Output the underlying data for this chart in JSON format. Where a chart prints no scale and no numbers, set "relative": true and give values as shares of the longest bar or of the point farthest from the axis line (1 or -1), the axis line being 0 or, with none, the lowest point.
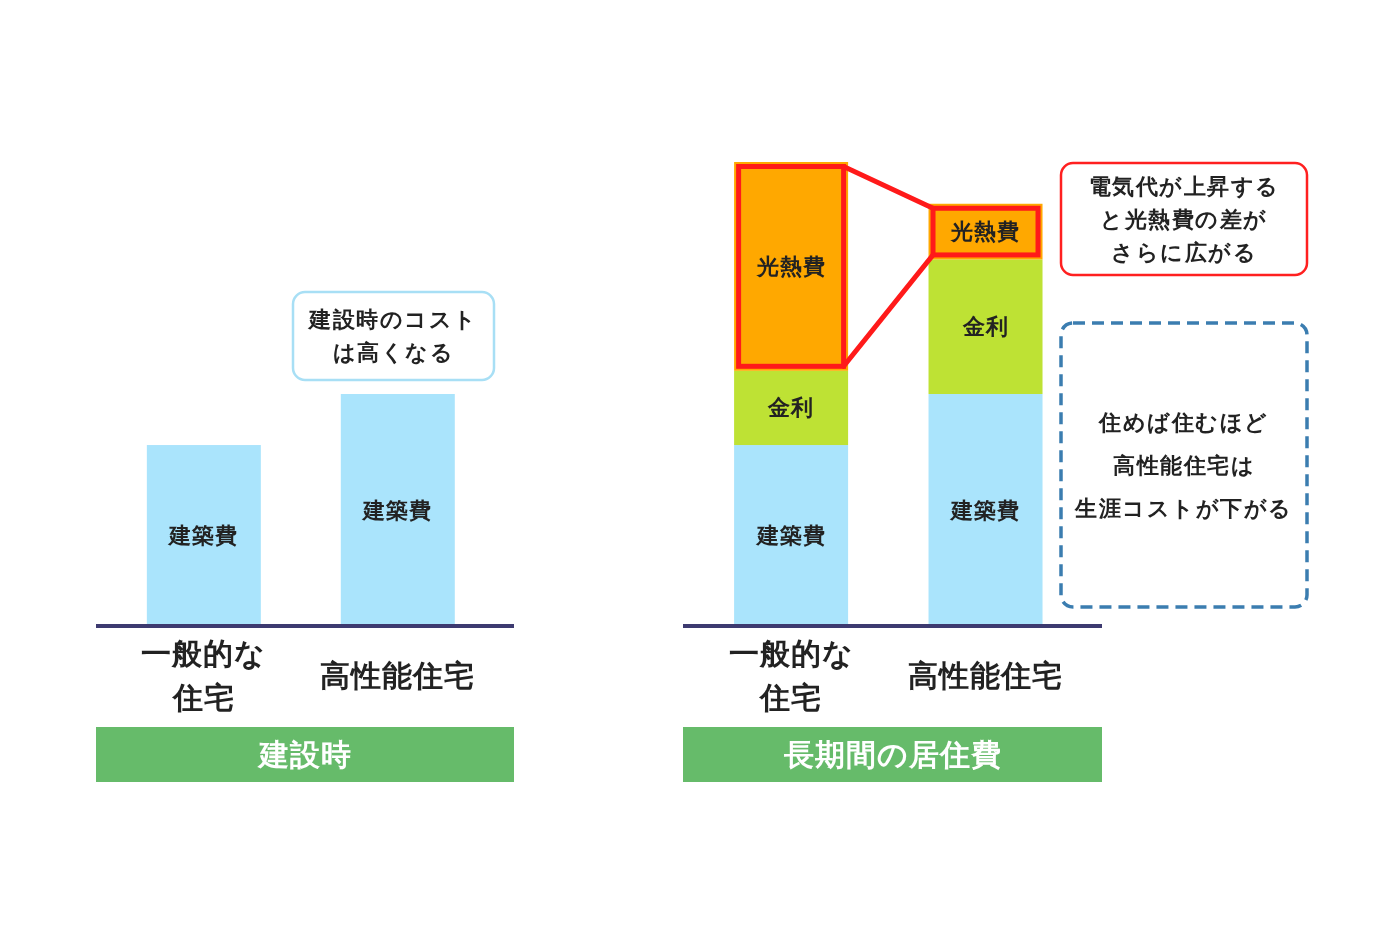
{
  "chart_data": [
    {
      "type": "bar",
      "title": "建設時",
      "categories": [
        "一般的な住宅",
        "高性能住宅"
      ],
      "relative": true,
      "series": [
        {
          "name": "建築費",
          "color": "#aae4fc",
          "values": [
            0.78,
            1
          ]
        }
      ],
      "annotations": [
        "建設時のコストは高くなる"
      ]
    },
    {
      "type": "bar",
      "title": "長期間の居住費",
      "categories": [
        "一般的な住宅",
        "高性能住宅"
      ],
      "relative": true,
      "stacked": true,
      "series": [
        {
          "name": "建築費",
          "color": "#aae4fc",
          "values": [
            0.39,
            0.5
          ]
        },
        {
          "name": "金利",
          "color": "#bee234",
          "values": [
            0.16,
            0.29
          ]
        },
        {
          "name": "光熱費",
          "color": "#ffa800",
          "values": [
            0.45,
            0.12
          ]
        }
      ],
      "annotations": [
        "電気代が上昇すると光熱費の差がさらに広がる",
        "住めば住むほど高性能住宅は生涯コストが下がる"
      ]
    }
  ]
}
